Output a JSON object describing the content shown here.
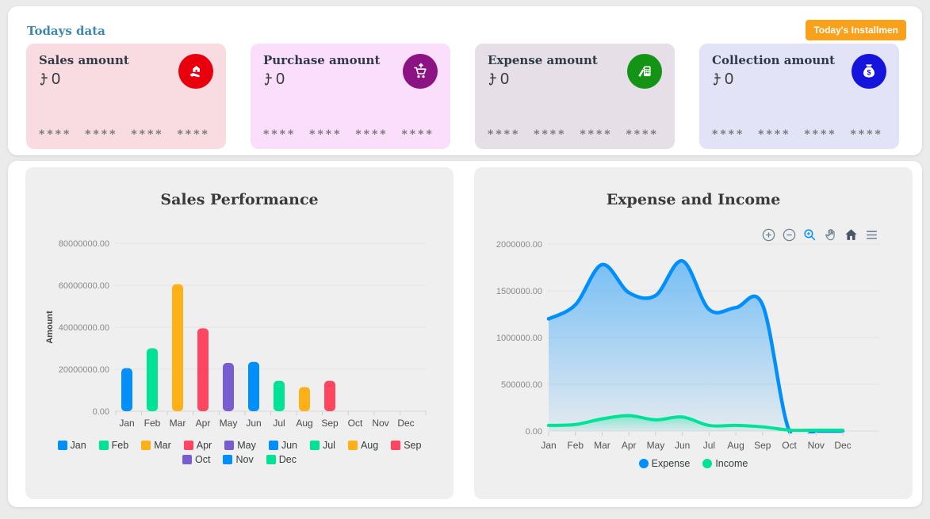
{
  "header": {
    "title": "Todays data",
    "installment_button": "Today's Installmen",
    "title_color": "#3E87AD",
    "button_color": "#F9A11B"
  },
  "cards": [
    {
      "title": "Sales amount",
      "currency_symbol": "৳",
      "value": "0",
      "mask": "**** **** **** ****",
      "bg": "#F9DCE2",
      "icon": "hand-house-icon",
      "icon_bg": "#E8000D"
    },
    {
      "title": "Purchase amount",
      "currency_symbol": "৳",
      "value": "0",
      "mask": "**** **** **** ****",
      "bg": "#FBDEFB",
      "icon": "cart-icon",
      "icon_bg": "#8B1384"
    },
    {
      "title": "Expense amount",
      "currency_symbol": "৳",
      "value": "0",
      "mask": "**** **** **** ****",
      "bg": "#E7DFE7",
      "icon": "calculator-icon",
      "icon_bg": "#149414"
    },
    {
      "title": "Collection amount",
      "currency_symbol": "৳",
      "value": "0",
      "mask": "**** **** **** ****",
      "bg": "#E3E3F8",
      "icon": "money-bag-icon",
      "icon_bg": "#1414DC"
    }
  ],
  "chart_data": [
    {
      "type": "bar",
      "title": "Sales Performance",
      "xlabel": "",
      "ylabel": "Amount",
      "categories": [
        "Jan",
        "Feb",
        "Mar",
        "Apr",
        "May",
        "Jun",
        "Jul",
        "Aug",
        "Sep",
        "Oct",
        "Nov",
        "Dec"
      ],
      "values": [
        20500000,
        30000000,
        60500000,
        39500000,
        23000000,
        23500000,
        14500000,
        11500000,
        14500000,
        0,
        0,
        0
      ],
      "ylim": [
        0,
        80000000
      ],
      "ytick_labels": [
        "0.00",
        "20000000.00",
        "40000000.00",
        "60000000.00",
        "80000000.00"
      ],
      "palette": [
        "#008FFB",
        "#00E396",
        "#FEB019",
        "#FF4560",
        "#775DD0"
      ],
      "grid": true,
      "legend_position": "bottom"
    },
    {
      "type": "area",
      "title": "Expense and Income",
      "xlabel": "",
      "ylabel": "",
      "categories": [
        "Jan",
        "Feb",
        "Mar",
        "Apr",
        "May",
        "Jun",
        "Jul",
        "Aug",
        "Sep",
        "Oct",
        "Nov",
        "Dec"
      ],
      "series": [
        {
          "name": "Expense",
          "color": "#008FFB",
          "values": [
            1200000,
            1350000,
            1780000,
            1480000,
            1450000,
            1820000,
            1300000,
            1320000,
            1350000,
            0,
            0,
            0
          ]
        },
        {
          "name": "Income",
          "color": "#00E396",
          "values": [
            60000,
            70000,
            130000,
            165000,
            120000,
            150000,
            60000,
            60000,
            45000,
            10000,
            10000,
            10000
          ]
        }
      ],
      "ylim": [
        0,
        2000000
      ],
      "ytick_labels": [
        "0.00",
        "500000.00",
        "1000000.00",
        "1500000.00",
        "2000000.00"
      ],
      "grid": true,
      "legend_position": "bottom",
      "toolbar": [
        "zoom-in",
        "zoom-out",
        "selection-zoom",
        "pan",
        "home",
        "menu"
      ]
    }
  ]
}
